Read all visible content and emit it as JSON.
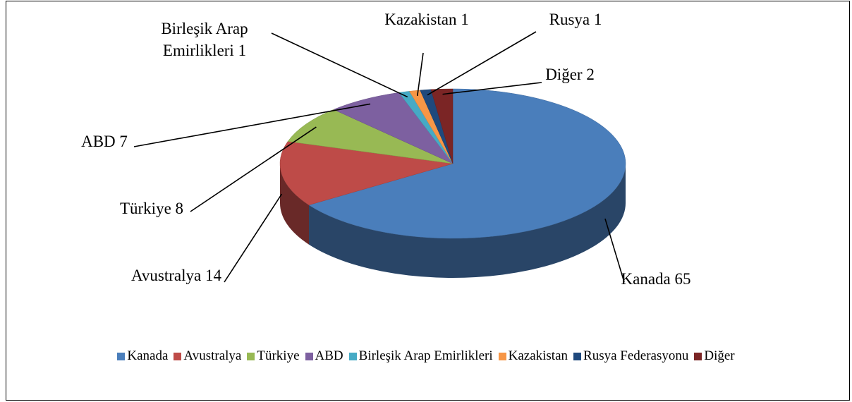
{
  "chart_data": {
    "type": "pie3d",
    "categories": [
      "Kanada",
      "Avustralya",
      "Türkiye",
      "ABD",
      "Birleşik Arap Emirlikleri",
      "Kazakistan",
      "Rusya Federasyonu",
      "Diğer"
    ],
    "data_label_names": [
      "Kanada",
      "Avustralya",
      "Türkiye",
      "ABD",
      "Birleşik Arap Emirlikleri",
      "Kazakistan",
      "Rusya",
      "Diğer"
    ],
    "values": [
      65,
      14,
      8,
      7,
      1,
      1,
      1,
      2
    ],
    "colors": [
      "#4a7ebb",
      "#be4b48",
      "#98b954",
      "#7d60a0",
      "#46aac5",
      "#f79646",
      "#1f497d",
      "#7b2525"
    ],
    "legend": "bottom"
  }
}
